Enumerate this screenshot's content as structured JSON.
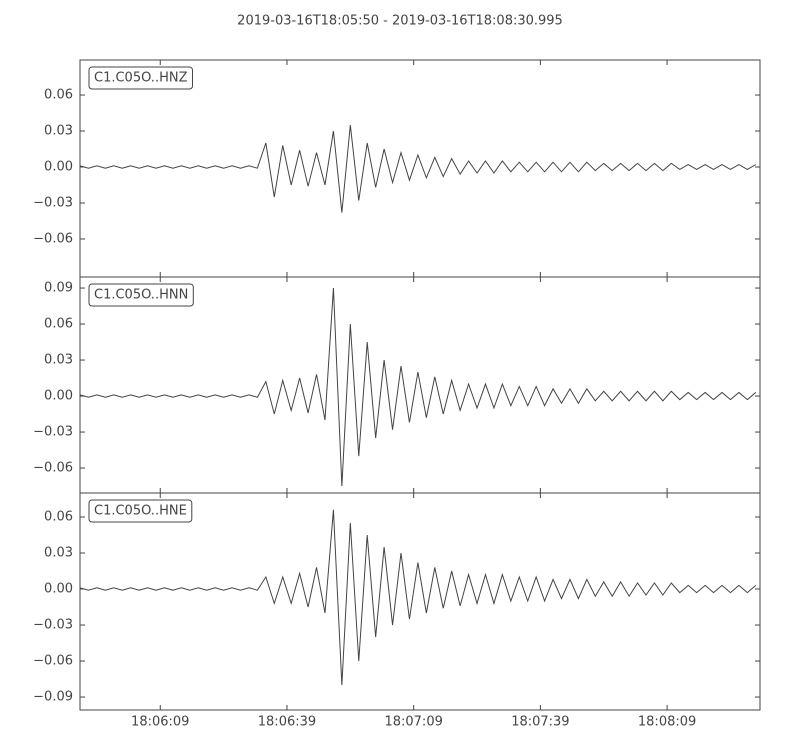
{
  "title": "2019-03-16T18:05:50  -  2019-03-16T18:08:30.995",
  "time_axis": {
    "xlim": [
      "18:05:50",
      "18:08:30.995"
    ],
    "xticks": [
      "18:06:09",
      "18:06:39",
      "18:07:09",
      "18:07:39",
      "18:08:09"
    ],
    "x": [
      "18:05:50",
      "18:05:52",
      "18:05:54",
      "18:05:56",
      "18:05:58",
      "18:06:00",
      "18:06:02",
      "18:06:04",
      "18:06:06",
      "18:06:08",
      "18:06:10",
      "18:06:12",
      "18:06:14",
      "18:06:16",
      "18:06:18",
      "18:06:20",
      "18:06:22",
      "18:06:24",
      "18:06:26",
      "18:06:28",
      "18:06:30",
      "18:06:32",
      "18:06:34",
      "18:06:36",
      "18:06:38",
      "18:06:40",
      "18:06:42",
      "18:06:44",
      "18:06:46",
      "18:06:48",
      "18:06:50",
      "18:06:52",
      "18:06:54",
      "18:06:56",
      "18:06:58",
      "18:07:00",
      "18:07:02",
      "18:07:04",
      "18:07:06",
      "18:07:08",
      "18:07:10",
      "18:07:12",
      "18:07:14",
      "18:07:16",
      "18:07:18",
      "18:07:20",
      "18:07:22",
      "18:07:24",
      "18:07:26",
      "18:07:28",
      "18:07:30",
      "18:07:32",
      "18:07:34",
      "18:07:36",
      "18:07:38",
      "18:07:40",
      "18:07:42",
      "18:07:44",
      "18:07:46",
      "18:07:48",
      "18:07:50",
      "18:07:52",
      "18:07:54",
      "18:07:56",
      "18:07:58",
      "18:08:00",
      "18:08:02",
      "18:08:04",
      "18:08:06",
      "18:08:08",
      "18:08:10",
      "18:08:12",
      "18:08:14",
      "18:08:16",
      "18:08:18",
      "18:08:20",
      "18:08:22",
      "18:08:24",
      "18:08:26",
      "18:08:28",
      "18:08:30"
    ]
  },
  "chart_data": [
    {
      "type": "line",
      "label": "C1.C05O..HNZ",
      "color": "#444444",
      "ylim": [
        -0.0917,
        0.0892
      ],
      "yticks": [
        {
          "value": -0.06,
          "label": "−0.06"
        },
        {
          "value": -0.03,
          "label": "−0.03"
        },
        {
          "value": 0,
          "label": "0.00"
        },
        {
          "value": 0.03,
          "label": "0.03"
        },
        {
          "value": 0.06,
          "label": "0.06"
        }
      ],
      "values": [
        0.001,
        -0.001,
        0.001,
        -0.001,
        0.001,
        -0.001,
        0.001,
        -0.001,
        0.001,
        -0.001,
        0.001,
        -0.001,
        0.001,
        -0.001,
        0.001,
        -0.001,
        0.001,
        -0.001,
        0.001,
        -0.001,
        0.001,
        -0.001,
        0.02,
        -0.025,
        0.018,
        -0.015,
        0.014,
        -0.016,
        0.012,
        -0.015,
        0.03,
        -0.038,
        0.035,
        -0.028,
        0.02,
        -0.017,
        0.015,
        -0.013,
        0.012,
        -0.011,
        0.01,
        -0.009,
        0.008,
        -0.008,
        0.007,
        -0.006,
        0.005,
        -0.005,
        0.005,
        -0.005,
        0.005,
        -0.004,
        0.004,
        -0.004,
        0.004,
        -0.004,
        0.004,
        -0.004,
        0.004,
        -0.004,
        0.004,
        -0.003,
        0.003,
        -0.003,
        0.003,
        -0.003,
        0.003,
        -0.003,
        0.003,
        -0.003,
        0.003,
        -0.002,
        0.002,
        -0.002,
        0.002,
        -0.002,
        0.002,
        -0.002,
        0.002,
        -0.002,
        0.002
      ]
    },
    {
      "type": "line",
      "label": "C1.C05O..HNN",
      "color": "#444444",
      "ylim": [
        -0.0808,
        0.0992
      ],
      "yticks": [
        {
          "value": -0.06,
          "label": "−0.06"
        },
        {
          "value": -0.03,
          "label": "−0.03"
        },
        {
          "value": 0,
          "label": "0.00"
        },
        {
          "value": 0.03,
          "label": "0.03"
        },
        {
          "value": 0.06,
          "label": "0.06"
        },
        {
          "value": 0.09,
          "label": "0.09"
        }
      ],
      "values": [
        0.001,
        -0.001,
        0.001,
        -0.001,
        0.001,
        -0.001,
        0.001,
        -0.001,
        0.001,
        -0.001,
        0.001,
        -0.001,
        0.001,
        -0.001,
        0.001,
        -0.001,
        0.001,
        -0.001,
        0.001,
        -0.001,
        0.001,
        -0.001,
        0.012,
        -0.015,
        0.013,
        -0.012,
        0.015,
        -0.014,
        0.018,
        -0.02,
        0.09,
        -0.075,
        0.06,
        -0.05,
        0.045,
        -0.035,
        0.03,
        -0.028,
        0.025,
        -0.022,
        0.02,
        -0.018,
        0.016,
        -0.015,
        0.013,
        -0.012,
        0.01,
        -0.01,
        0.01,
        -0.01,
        0.01,
        -0.008,
        0.008,
        -0.008,
        0.008,
        -0.008,
        0.006,
        -0.006,
        0.006,
        -0.006,
        0.006,
        -0.004,
        0.004,
        -0.004,
        0.004,
        -0.004,
        0.004,
        -0.004,
        0.004,
        -0.004,
        0.004,
        -0.003,
        0.003,
        -0.003,
        0.003,
        -0.003,
        0.003,
        -0.003,
        0.003,
        -0.003,
        0.003
      ]
    },
    {
      "type": "line",
      "label": "C1.C05O..HNE",
      "color": "#444444",
      "ylim": [
        -0.1008,
        0.08
      ],
      "yticks": [
        {
          "value": -0.09,
          "label": "−0.09"
        },
        {
          "value": -0.06,
          "label": "−0.06"
        },
        {
          "value": -0.03,
          "label": "−0.03"
        },
        {
          "value": 0,
          "label": "0.00"
        },
        {
          "value": 0.03,
          "label": "0.03"
        },
        {
          "value": 0.06,
          "label": "0.06"
        }
      ],
      "values": [
        0.001,
        -0.001,
        0.001,
        -0.001,
        0.001,
        -0.001,
        0.001,
        -0.001,
        0.001,
        -0.001,
        0.001,
        -0.001,
        0.001,
        -0.001,
        0.001,
        -0.001,
        0.001,
        -0.001,
        0.001,
        -0.001,
        0.001,
        -0.001,
        0.01,
        -0.012,
        0.01,
        -0.012,
        0.013,
        -0.015,
        0.018,
        -0.02,
        0.066,
        -0.08,
        0.055,
        -0.06,
        0.045,
        -0.04,
        0.035,
        -0.03,
        0.03,
        -0.025,
        0.022,
        -0.02,
        0.018,
        -0.016,
        0.015,
        -0.014,
        0.012,
        -0.012,
        0.012,
        -0.012,
        0.012,
        -0.01,
        0.01,
        -0.01,
        0.01,
        -0.01,
        0.008,
        -0.008,
        0.008,
        -0.008,
        0.008,
        -0.006,
        0.006,
        -0.006,
        0.006,
        -0.006,
        0.005,
        -0.005,
        0.005,
        -0.005,
        0.005,
        -0.003,
        0.003,
        -0.003,
        0.003,
        -0.003,
        0.003,
        -0.003,
        0.003,
        -0.003,
        0.003
      ]
    }
  ]
}
